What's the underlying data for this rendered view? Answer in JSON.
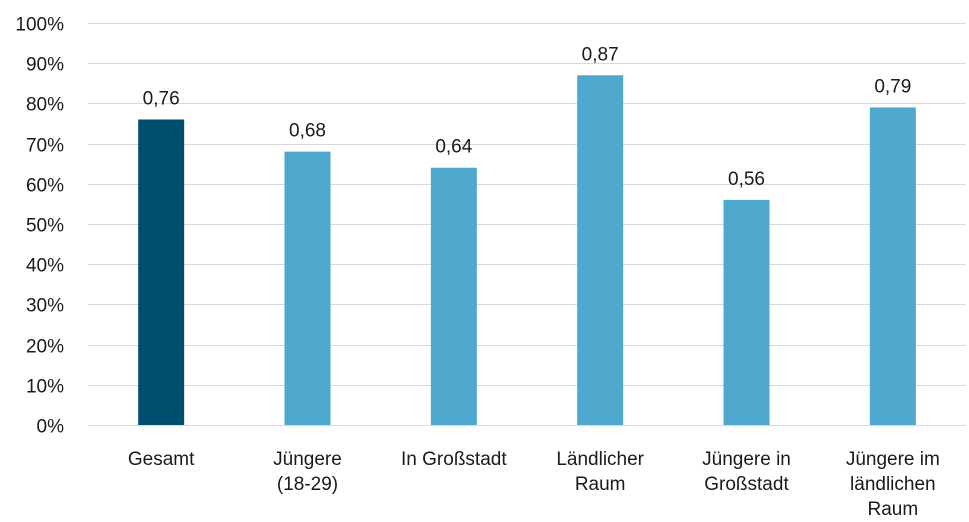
{
  "chart_data": {
    "type": "bar",
    "title": "",
    "xlabel": "",
    "ylabel": "",
    "categories": [
      [
        "Gesamt"
      ],
      [
        "Jüngere",
        "(18-29)"
      ],
      [
        "In Großstadt"
      ],
      [
        "Ländlicher",
        "Raum"
      ],
      [
        "Jüngere in",
        "Großstadt"
      ],
      [
        "Jüngere im",
        "ländlichen",
        "Raum"
      ]
    ],
    "values": [
      0.76,
      0.68,
      0.64,
      0.87,
      0.56,
      0.79
    ],
    "value_labels": [
      "0,76",
      "0,68",
      "0,64",
      "0,87",
      "0,56",
      "0,79"
    ],
    "ylim": [
      0,
      1
    ],
    "y_ticks": [
      0,
      0.1,
      0.2,
      0.3,
      0.4,
      0.5,
      0.6,
      0.7,
      0.8,
      0.9,
      1.0
    ],
    "y_tick_labels": [
      "0%",
      "10%",
      "20%",
      "30%",
      "40%",
      "50%",
      "60%",
      "70%",
      "80%",
      "90%",
      "100%"
    ],
    "grid": true,
    "legend": "none",
    "colors": {
      "highlight": "#004f6e",
      "default": "#4fa9cf"
    },
    "highlight_index": 0
  }
}
